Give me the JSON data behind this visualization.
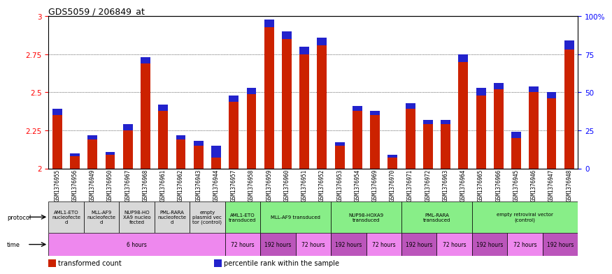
{
  "title": "GDS5059 / 206849_at",
  "samples": [
    "GSM1376955",
    "GSM1376956",
    "GSM1376949",
    "GSM1376950",
    "GSM1376967",
    "GSM1376968",
    "GSM1376961",
    "GSM1376962",
    "GSM1376943",
    "GSM1376944",
    "GSM1376957",
    "GSM1376958",
    "GSM1376959",
    "GSM1376960",
    "GSM1376951",
    "GSM1376952",
    "GSM1376953",
    "GSM1376954",
    "GSM1376969",
    "GSM1376970",
    "GSM1376971",
    "GSM1376972",
    "GSM1376963",
    "GSM1376964",
    "GSM1376965",
    "GSM1376966",
    "GSM1376945",
    "GSM1376946",
    "GSM1376947",
    "GSM1376948"
  ],
  "red_values": [
    2.35,
    2.08,
    2.19,
    2.09,
    2.25,
    2.69,
    2.38,
    2.19,
    2.15,
    2.07,
    2.44,
    2.49,
    2.93,
    2.85,
    2.75,
    2.81,
    2.15,
    2.38,
    2.35,
    2.07,
    2.39,
    2.29,
    2.29,
    2.7,
    2.48,
    2.52,
    2.2,
    2.5,
    2.46,
    2.78
  ],
  "blue_values": [
    0.04,
    0.02,
    0.03,
    0.02,
    0.04,
    0.04,
    0.04,
    0.03,
    0.03,
    0.08,
    0.04,
    0.04,
    0.05,
    0.05,
    0.05,
    0.05,
    0.02,
    0.03,
    0.03,
    0.02,
    0.04,
    0.03,
    0.03,
    0.05,
    0.05,
    0.04,
    0.04,
    0.04,
    0.04,
    0.06
  ],
  "ylim": [
    2.0,
    3.0
  ],
  "yticks": [
    2.0,
    2.25,
    2.5,
    2.75,
    3.0
  ],
  "ytick_labels_left": [
    "2",
    "2.25",
    "2.5",
    "2.75",
    "3"
  ],
  "ytick_labels_right": [
    "0",
    "25",
    "50",
    "75",
    "100%"
  ],
  "bar_color_red": "#CC2200",
  "bar_color_blue": "#2222CC",
  "protocol_labels": [
    {
      "text": "AML1-ETO\nnucleofecte\nd",
      "start": 0,
      "end": 2,
      "color": "#d8d8d8"
    },
    {
      "text": "MLL-AF9\nnucleofecte\nd",
      "start": 2,
      "end": 4,
      "color": "#d8d8d8"
    },
    {
      "text": "NUP98-HO\nXA9 nucleo\nfected",
      "start": 4,
      "end": 6,
      "color": "#d8d8d8"
    },
    {
      "text": "PML-RARA\nnucleofecte\nd",
      "start": 6,
      "end": 8,
      "color": "#d8d8d8"
    },
    {
      "text": "empty\nplasmid vec\ntor (control)",
      "start": 8,
      "end": 10,
      "color": "#d8d8d8"
    },
    {
      "text": "AML1-ETO\ntransduced",
      "start": 10,
      "end": 12,
      "color": "#88ee88"
    },
    {
      "text": "MLL-AF9 transduced",
      "start": 12,
      "end": 16,
      "color": "#88ee88"
    },
    {
      "text": "NUP98-HOXA9\ntransduced",
      "start": 16,
      "end": 20,
      "color": "#88ee88"
    },
    {
      "text": "PML-RARA\ntransduced",
      "start": 20,
      "end": 24,
      "color": "#88ee88"
    },
    {
      "text": "empty retroviral vector\n(control)",
      "start": 24,
      "end": 30,
      "color": "#88ee88"
    }
  ],
  "time_labels": [
    {
      "text": "6 hours",
      "start": 0,
      "end": 10,
      "color": "#ee88ee"
    },
    {
      "text": "72 hours",
      "start": 10,
      "end": 12,
      "color": "#ee88ee"
    },
    {
      "text": "192 hours",
      "start": 12,
      "end": 14,
      "color": "#bb55bb"
    },
    {
      "text": "72 hours",
      "start": 14,
      "end": 16,
      "color": "#ee88ee"
    },
    {
      "text": "192 hours",
      "start": 16,
      "end": 18,
      "color": "#bb55bb"
    },
    {
      "text": "72 hours",
      "start": 18,
      "end": 20,
      "color": "#ee88ee"
    },
    {
      "text": "192 hours",
      "start": 20,
      "end": 22,
      "color": "#bb55bb"
    },
    {
      "text": "72 hours",
      "start": 22,
      "end": 24,
      "color": "#ee88ee"
    },
    {
      "text": "192 hours",
      "start": 24,
      "end": 26,
      "color": "#bb55bb"
    },
    {
      "text": "72 hours",
      "start": 26,
      "end": 28,
      "color": "#ee88ee"
    },
    {
      "text": "192 hours",
      "start": 28,
      "end": 30,
      "color": "#bb55bb"
    }
  ],
  "legend_items": [
    {
      "color": "#CC2200",
      "label": "transformed count"
    },
    {
      "color": "#2222CC",
      "label": "percentile rank within the sample"
    }
  ]
}
